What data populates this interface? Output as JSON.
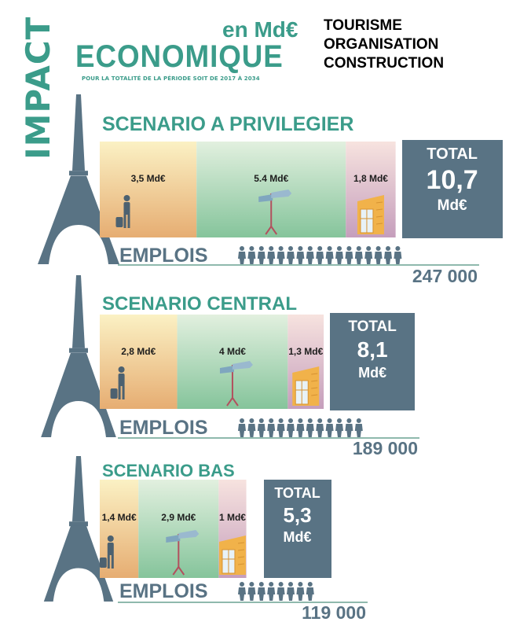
{
  "header": {
    "vertical_title": "IMPACT",
    "title": "ECONOMIQUE",
    "unit": "en Md€",
    "period_note": "POUR LA TOTALITÉ DE LA PÉRIODE SOIT DE 2017 À 2034"
  },
  "legend": [
    {
      "label": "TOURISME",
      "color": "#d9a56a"
    },
    {
      "label": "ORGANISATION",
      "color": "#9cc7a0"
    },
    {
      "label": "CONSTRUCTION",
      "color": "#c9a3c0"
    }
  ],
  "total_label": "TOTAL",
  "jobs_label": "EMPLOIS",
  "icons": [
    "eiffel-tower-icon",
    "tourist-traveler-icon",
    "signpost-icon",
    "building-icon",
    "person-icon"
  ],
  "chart_data": {
    "type": "bar",
    "stacked": true,
    "unit": "Md€",
    "categories": [
      "TOURISME",
      "ORGANISATION",
      "CONSTRUCTION"
    ],
    "scenarios": [
      {
        "name": "SCENARIO A PRIVILEGIER",
        "values": [
          3.5,
          5.4,
          1.8
        ],
        "labels": [
          "3,5 Md€",
          "5.4 Md€",
          "1,8 Md€"
        ],
        "total": 10.7,
        "total_value": "10,7",
        "total_unit": "Md€",
        "jobs": 247000,
        "jobs_text": "247 000",
        "job_icons": 17
      },
      {
        "name": "SCENARIO CENTRAL",
        "values": [
          2.8,
          4,
          1.3
        ],
        "labels": [
          "2,8 Md€",
          "4 Md€",
          "1,3 Md€"
        ],
        "total": 8.1,
        "total_value": "8,1",
        "total_unit": "Md€",
        "jobs": 189000,
        "jobs_text": "189 000",
        "job_icons": 13
      },
      {
        "name": "SCENARIO BAS",
        "values": [
          1.4,
          2.9,
          1
        ],
        "labels": [
          "1,4 Md€",
          "2,9 Md€",
          "1 Md€"
        ],
        "total": 5.3,
        "total_value": "5,3",
        "total_unit": "Md€",
        "jobs": 119000,
        "jobs_text": "119 000",
        "job_icons": 8
      }
    ]
  }
}
